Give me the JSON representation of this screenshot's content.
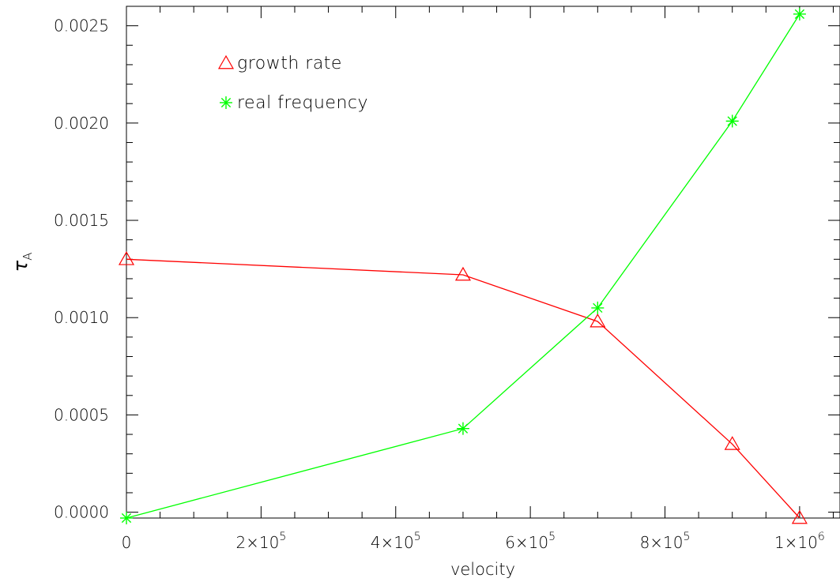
{
  "chart_data": {
    "type": "line",
    "title": "",
    "xlabel": "velocity",
    "ylabel_symbol": "τ",
    "ylabel_subscript": "A",
    "xlim": [
      0,
      1060000
    ],
    "ylim": [
      -3e-05,
      0.0026
    ],
    "grid": false,
    "legend_position": "top-left",
    "x_ticks": [
      {
        "value": 0,
        "label": "0"
      },
      {
        "value": 200000,
        "label": "2×10",
        "exp": "5"
      },
      {
        "value": 400000,
        "label": "4×10",
        "exp": "5"
      },
      {
        "value": 600000,
        "label": "6×10",
        "exp": "5"
      },
      {
        "value": 800000,
        "label": "8×10",
        "exp": "5"
      },
      {
        "value": 1000000,
        "label": "1×10",
        "exp": "6"
      }
    ],
    "y_ticks": [
      {
        "value": 0.0,
        "label": "0.0000"
      },
      {
        "value": 0.0005,
        "label": "0.0005"
      },
      {
        "value": 0.001,
        "label": "0.0010"
      },
      {
        "value": 0.0015,
        "label": "0.0015"
      },
      {
        "value": 0.002,
        "label": "0.0020"
      },
      {
        "value": 0.0025,
        "label": "0.0025"
      }
    ],
    "series": [
      {
        "name": "growth rate",
        "color": "#ff0000",
        "marker": "triangle",
        "x": [
          0,
          500000,
          700000,
          900000,
          1000000
        ],
        "y": [
          0.0013,
          0.00122,
          0.00098,
          0.00035,
          -3e-05
        ]
      },
      {
        "name": "real frequency",
        "color": "#00ff00",
        "marker": "asterisk",
        "x": [
          0,
          500000,
          700000,
          900000,
          1000000
        ],
        "y": [
          -3e-05,
          0.00043,
          0.00105,
          0.00201,
          0.00256
        ]
      }
    ]
  }
}
